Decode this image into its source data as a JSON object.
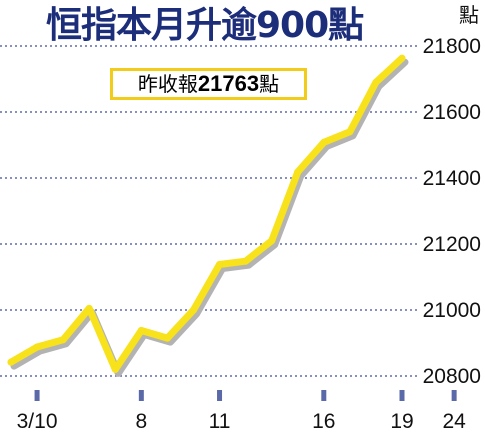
{
  "header": {
    "title": "恒指本月升逾900點",
    "unit": "點"
  },
  "callout": {
    "prefix": "昨收報",
    "value": "21763",
    "suffix": "點"
  },
  "colors": {
    "title": "#1c2d7a",
    "line": "#f7e21b",
    "line_shadow": "#b3b3b3",
    "gridline": "#3d4f9e",
    "tick_marks": "#5a6aa8",
    "callout_border": "#f2cc1a"
  },
  "chart_data": {
    "type": "line",
    "title": "恒指本月升逾900點",
    "xlabel": "",
    "ylabel": "點",
    "x_ticks": [
      "3/10",
      "8",
      "11",
      "16",
      "19",
      "24"
    ],
    "x_tick_index": [
      1,
      5,
      8,
      12,
      15,
      17
    ],
    "y_ticks": [
      20800,
      21000,
      21200,
      21400,
      21600,
      21800
    ],
    "ylim": [
      20770,
      21850
    ],
    "grid": true,
    "series": [
      {
        "values": [
          20842,
          20888,
          20910,
          21005,
          20820,
          20938,
          20915,
          21000,
          21138,
          21148,
          21210,
          21418,
          21508,
          21540,
          21690,
          21763
        ]
      }
    ]
  }
}
